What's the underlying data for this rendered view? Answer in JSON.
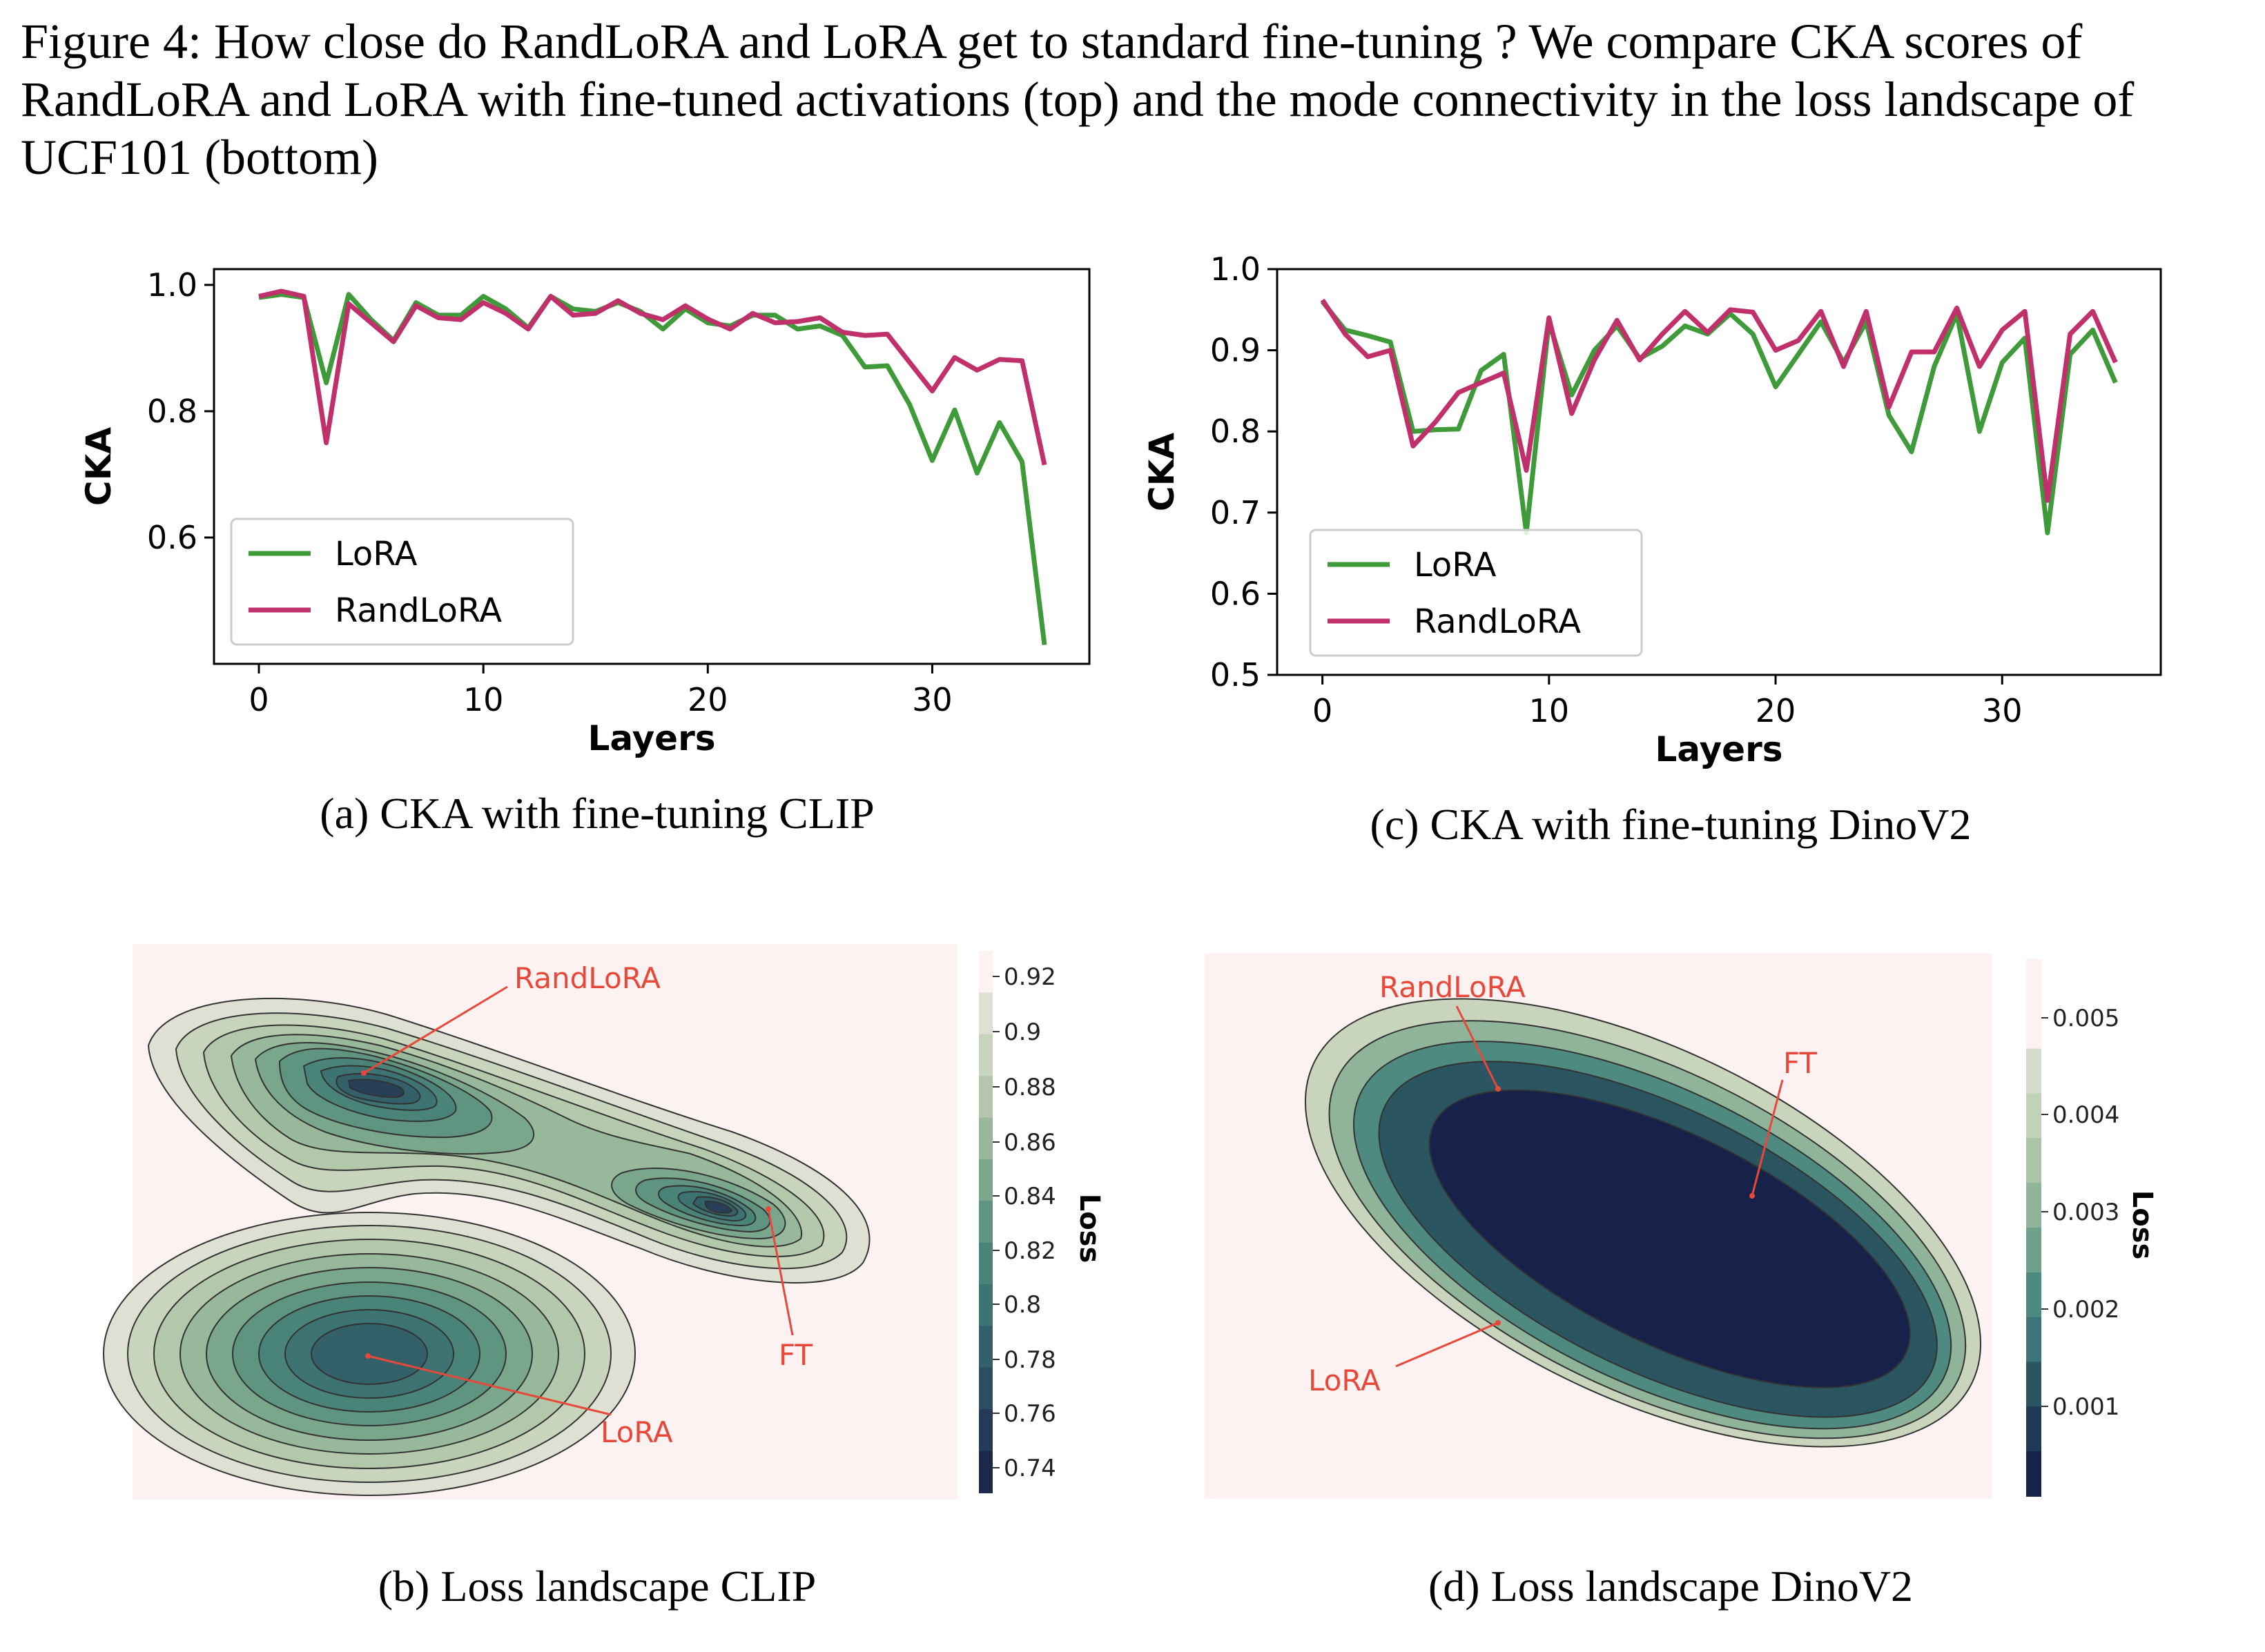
{
  "figure": {
    "caption": "Figure 4: How close do RandLoRA and LoRA get to standard fine-tuning ? We compare CKA scores of RandLoRA and LoRA with fine-tuned activations (top) and the mode connectivity in the loss landscape of UCF101 (bottom)",
    "subcaptions": {
      "a": "(a) CKA with fine-tuning CLIP",
      "b": "(b) Loss landscape CLIP",
      "c": "(c) CKA with fine-tuning DinoV2",
      "d": "(d) Loss landscape DinoV2"
    }
  },
  "chart_data": [
    {
      "id": "a",
      "type": "line",
      "xlabel": "Layers",
      "ylabel": "CKA",
      "xlim": [
        -2,
        37
      ],
      "ylim": [
        0.4,
        1.025
      ],
      "xticks": [
        0,
        10,
        20,
        30
      ],
      "yticks": [
        0.6,
        0.8,
        1.0
      ],
      "ytick_labels": [
        "0.6",
        "0.8",
        "1.0"
      ],
      "legend": "lower-left",
      "x": [
        0,
        1,
        2,
        3,
        4,
        5,
        6,
        7,
        8,
        9,
        10,
        11,
        12,
        13,
        14,
        15,
        16,
        17,
        18,
        19,
        20,
        21,
        22,
        23,
        24,
        25,
        26,
        27,
        28,
        29,
        30,
        31,
        32,
        33,
        34,
        35
      ],
      "series": [
        {
          "name": "LoRA",
          "color": "#3f9a3a",
          "values": [
            0.98,
            0.985,
            0.98,
            0.845,
            0.985,
            0.945,
            0.912,
            0.972,
            0.952,
            0.952,
            0.982,
            0.962,
            0.932,
            0.982,
            0.962,
            0.958,
            0.972,
            0.958,
            0.93,
            0.962,
            0.94,
            0.935,
            0.952,
            0.952,
            0.93,
            0.935,
            0.92,
            0.87,
            0.872,
            0.81,
            0.722,
            0.802,
            0.702,
            0.782,
            0.72,
            0.43
          ]
        },
        {
          "name": "RandLoRA",
          "color": "#c0306a",
          "values": [
            0.982,
            0.99,
            0.982,
            0.75,
            0.97,
            0.94,
            0.91,
            0.967,
            0.948,
            0.945,
            0.972,
            0.955,
            0.93,
            0.982,
            0.952,
            0.955,
            0.975,
            0.955,
            0.945,
            0.967,
            0.946,
            0.93,
            0.955,
            0.94,
            0.942,
            0.948,
            0.925,
            0.92,
            0.922,
            0.877,
            0.832,
            0.885,
            0.865,
            0.882,
            0.88,
            0.715
          ]
        }
      ]
    },
    {
      "id": "c",
      "type": "line",
      "xlabel": "Layers",
      "ylabel": "CKA",
      "xlim": [
        -2,
        37
      ],
      "ylim": [
        0.5,
        1.0
      ],
      "xticks": [
        0,
        10,
        20,
        30
      ],
      "yticks": [
        0.5,
        0.6,
        0.7,
        0.8,
        0.9,
        1.0
      ],
      "ytick_labels": [
        "0.5",
        "0.6",
        "0.7",
        "0.8",
        "0.9",
        "1.0"
      ],
      "legend": "lower-left",
      "x": [
        0,
        1,
        2,
        3,
        4,
        5,
        6,
        7,
        8,
        9,
        10,
        11,
        12,
        13,
        14,
        15,
        16,
        17,
        18,
        19,
        20,
        21,
        22,
        23,
        24,
        25,
        26,
        27,
        28,
        29,
        30,
        31,
        32,
        33,
        34,
        35
      ],
      "series": [
        {
          "name": "LoRA",
          "color": "#3f9a3a",
          "values": [
            0.96,
            0.925,
            0.918,
            0.91,
            0.8,
            0.802,
            0.803,
            0.875,
            0.895,
            0.675,
            0.935,
            0.845,
            0.9,
            0.93,
            0.89,
            0.905,
            0.93,
            0.92,
            0.945,
            0.92,
            0.855,
            0.895,
            0.935,
            0.885,
            0.935,
            0.82,
            0.775,
            0.88,
            0.945,
            0.8,
            0.885,
            0.915,
            0.675,
            0.895,
            0.925,
            0.86
          ]
        },
        {
          "name": "RandLoRA",
          "color": "#c0306a",
          "values": [
            0.962,
            0.92,
            0.892,
            0.9,
            0.782,
            0.812,
            0.848,
            0.86,
            0.872,
            0.752,
            0.94,
            0.822,
            0.888,
            0.937,
            0.888,
            0.92,
            0.948,
            0.922,
            0.95,
            0.947,
            0.9,
            0.912,
            0.948,
            0.88,
            0.948,
            0.83,
            0.898,
            0.898,
            0.952,
            0.88,
            0.925,
            0.948,
            0.715,
            0.92,
            0.948,
            0.885
          ]
        }
      ]
    },
    {
      "id": "b",
      "type": "heatmap",
      "colorbar_label": "Loss",
      "colorbar_ticks": [
        "0.92",
        "0.9",
        "0.88",
        "0.86",
        "0.84",
        "0.82",
        "0.8",
        "0.78",
        "0.76",
        "0.74"
      ],
      "annotations": [
        "RandLoRA",
        "FT",
        "LoRA"
      ]
    },
    {
      "id": "d",
      "type": "heatmap",
      "colorbar_label": "Loss",
      "colorbar_ticks": [
        "0.005",
        "0.004",
        "0.003",
        "0.002",
        "0.001"
      ],
      "annotations": [
        "RandLoRA",
        "FT",
        "LoRA"
      ]
    }
  ]
}
